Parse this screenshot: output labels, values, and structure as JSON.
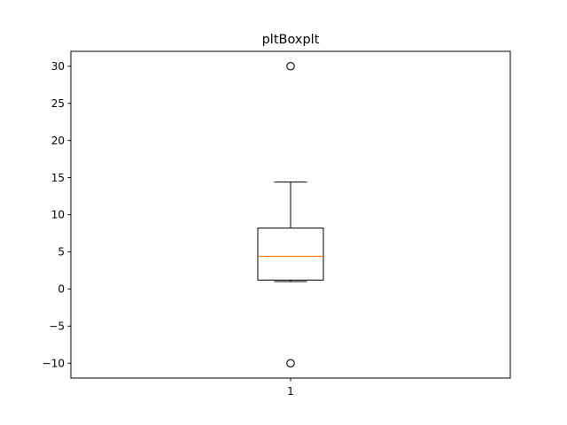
{
  "chart_data": {
    "type": "box",
    "title": "pltBoxplt",
    "xlabel": "",
    "ylabel": "",
    "categories": [
      "1"
    ],
    "ylim": [
      -12,
      32
    ],
    "yticks": [
      -10,
      -5,
      0,
      5,
      10,
      15,
      20,
      25,
      30
    ],
    "ytick_labels": [
      "−10",
      "−5",
      "0",
      "5",
      "10",
      "15",
      "20",
      "25",
      "30"
    ],
    "xlim": [
      0.5,
      1.5
    ],
    "grid": false,
    "legend": "none",
    "boxes": [
      {
        "category": "1",
        "q1": 1.2,
        "median": 4.4,
        "q3": 8.2,
        "whisker_low": 1.0,
        "whisker_high": 14.4,
        "fliers": [
          30,
          -10
        ]
      }
    ],
    "colors": {
      "median": "#ff7f0e",
      "box": "#000000",
      "flier": "#000000"
    }
  }
}
